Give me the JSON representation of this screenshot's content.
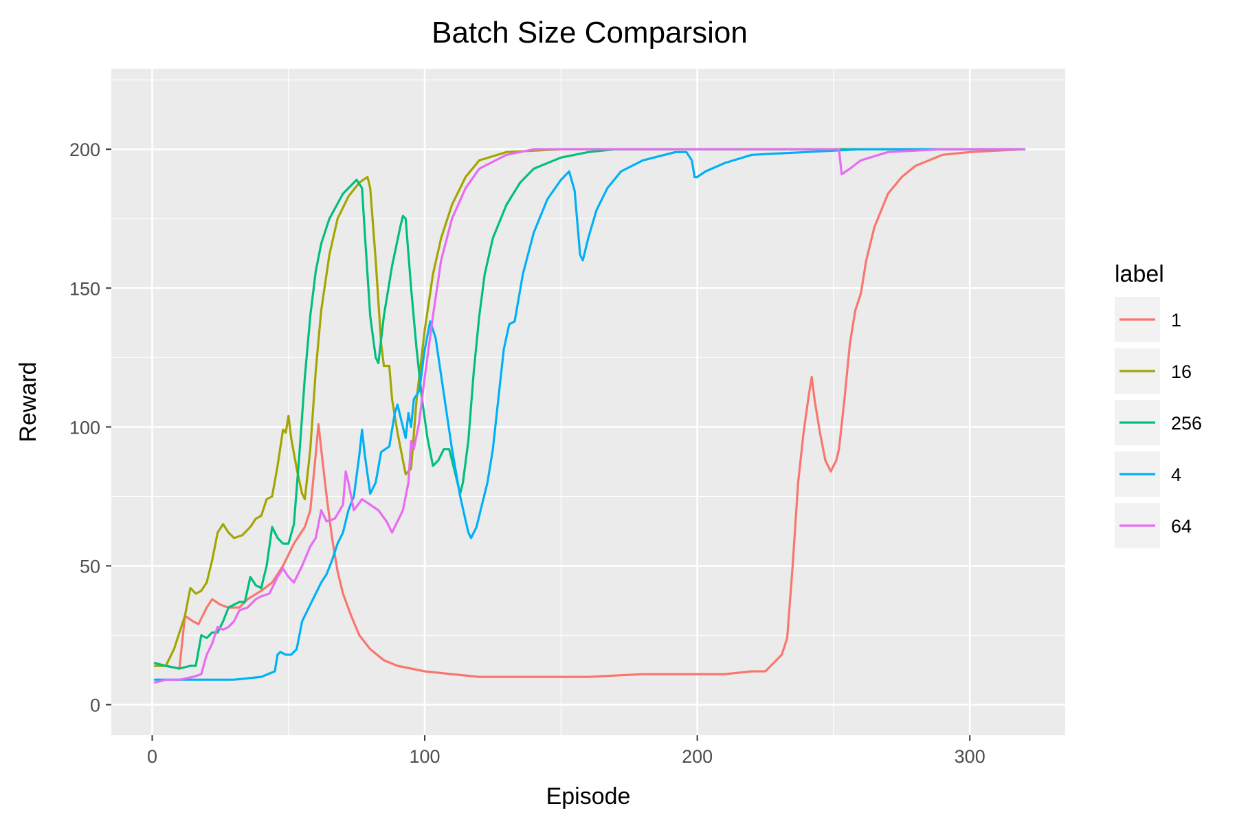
{
  "chart_data": {
    "type": "line",
    "title": "Batch Size Comparsion",
    "xlabel": "Episode",
    "ylabel": "Reward",
    "xlim": [
      -15,
      335
    ],
    "ylim": [
      -11,
      229
    ],
    "x_ticks": [
      0,
      100,
      200,
      300
    ],
    "y_ticks": [
      0,
      50,
      100,
      150,
      200
    ],
    "grid": true,
    "legend": {
      "title": "label",
      "position": "right"
    },
    "series": [
      {
        "name": "1",
        "color": "#F8766D",
        "points": [
          [
            1,
            14
          ],
          [
            5,
            14
          ],
          [
            10,
            13
          ],
          [
            12,
            32
          ],
          [
            15,
            30
          ],
          [
            17,
            29
          ],
          [
            20,
            35
          ],
          [
            22,
            38
          ],
          [
            25,
            36
          ],
          [
            28,
            35
          ],
          [
            32,
            35
          ],
          [
            35,
            38
          ],
          [
            40,
            41
          ],
          [
            44,
            44
          ],
          [
            48,
            50
          ],
          [
            52,
            58
          ],
          [
            56,
            64
          ],
          [
            58,
            70
          ],
          [
            60,
            90
          ],
          [
            61,
            101
          ],
          [
            62,
            92
          ],
          [
            64,
            75
          ],
          [
            66,
            60
          ],
          [
            68,
            48
          ],
          [
            70,
            40
          ],
          [
            73,
            32
          ],
          [
            76,
            25
          ],
          [
            80,
            20
          ],
          [
            85,
            16
          ],
          [
            90,
            14
          ],
          [
            95,
            13
          ],
          [
            100,
            12
          ],
          [
            110,
            11
          ],
          [
            120,
            10
          ],
          [
            130,
            10
          ],
          [
            140,
            10
          ],
          [
            150,
            10
          ],
          [
            160,
            10
          ],
          [
            180,
            11
          ],
          [
            190,
            11
          ],
          [
            200,
            11
          ],
          [
            210,
            11
          ],
          [
            220,
            12
          ],
          [
            225,
            12
          ],
          [
            228,
            15
          ],
          [
            231,
            18
          ],
          [
            233,
            24
          ],
          [
            235,
            50
          ],
          [
            237,
            80
          ],
          [
            239,
            98
          ],
          [
            241,
            112
          ],
          [
            242,
            118
          ],
          [
            243,
            110
          ],
          [
            245,
            98
          ],
          [
            247,
            88
          ],
          [
            249,
            84
          ],
          [
            251,
            88
          ],
          [
            252,
            92
          ],
          [
            254,
            110
          ],
          [
            256,
            130
          ],
          [
            258,
            142
          ],
          [
            260,
            148
          ],
          [
            262,
            160
          ],
          [
            265,
            172
          ],
          [
            270,
            184
          ],
          [
            275,
            190
          ],
          [
            280,
            194
          ],
          [
            290,
            198
          ],
          [
            300,
            199
          ],
          [
            320,
            200
          ]
        ]
      },
      {
        "name": "16",
        "color": "#A3A500",
        "points": [
          [
            1,
            14
          ],
          [
            5,
            14
          ],
          [
            8,
            20
          ],
          [
            12,
            32
          ],
          [
            14,
            42
          ],
          [
            16,
            40
          ],
          [
            18,
            41
          ],
          [
            20,
            44
          ],
          [
            22,
            52
          ],
          [
            24,
            62
          ],
          [
            26,
            65
          ],
          [
            28,
            62
          ],
          [
            30,
            60
          ],
          [
            33,
            61
          ],
          [
            36,
            64
          ],
          [
            38,
            67
          ],
          [
            40,
            68
          ],
          [
            42,
            74
          ],
          [
            44,
            75
          ],
          [
            46,
            86
          ],
          [
            48,
            99
          ],
          [
            49,
            98
          ],
          [
            50,
            104
          ],
          [
            51,
            96
          ],
          [
            53,
            85
          ],
          [
            55,
            76
          ],
          [
            56,
            74
          ],
          [
            58,
            92
          ],
          [
            60,
            120
          ],
          [
            62,
            142
          ],
          [
            65,
            162
          ],
          [
            68,
            175
          ],
          [
            72,
            183
          ],
          [
            76,
            188
          ],
          [
            79,
            190
          ],
          [
            80,
            186
          ],
          [
            82,
            160
          ],
          [
            84,
            130
          ],
          [
            85,
            122
          ],
          [
            87,
            122
          ],
          [
            88,
            110
          ],
          [
            90,
            98
          ],
          [
            92,
            88
          ],
          [
            93,
            83
          ],
          [
            95,
            85
          ],
          [
            97,
            110
          ],
          [
            100,
            135
          ],
          [
            103,
            155
          ],
          [
            106,
            168
          ],
          [
            110,
            180
          ],
          [
            115,
            190
          ],
          [
            120,
            196
          ],
          [
            130,
            199
          ],
          [
            150,
            200
          ],
          [
            320,
            200
          ]
        ]
      },
      {
        "name": "256",
        "color": "#00BF7D",
        "points": [
          [
            1,
            15
          ],
          [
            5,
            14
          ],
          [
            10,
            13
          ],
          [
            14,
            14
          ],
          [
            16,
            14
          ],
          [
            18,
            25
          ],
          [
            20,
            24
          ],
          [
            22,
            26
          ],
          [
            24,
            26
          ],
          [
            26,
            30
          ],
          [
            28,
            35
          ],
          [
            32,
            37
          ],
          [
            34,
            37
          ],
          [
            36,
            46
          ],
          [
            38,
            43
          ],
          [
            40,
            42
          ],
          [
            42,
            50
          ],
          [
            44,
            64
          ],
          [
            46,
            60
          ],
          [
            48,
            58
          ],
          [
            50,
            58
          ],
          [
            52,
            65
          ],
          [
            54,
            90
          ],
          [
            56,
            118
          ],
          [
            58,
            140
          ],
          [
            60,
            156
          ],
          [
            62,
            166
          ],
          [
            65,
            175
          ],
          [
            70,
            184
          ],
          [
            75,
            189
          ],
          [
            77,
            186
          ],
          [
            78,
            170
          ],
          [
            80,
            140
          ],
          [
            82,
            125
          ],
          [
            83,
            123
          ],
          [
            85,
            140
          ],
          [
            88,
            158
          ],
          [
            91,
            172
          ],
          [
            92,
            176
          ],
          [
            93,
            175
          ],
          [
            95,
            150
          ],
          [
            97,
            128
          ],
          [
            99,
            110
          ],
          [
            101,
            96
          ],
          [
            103,
            86
          ],
          [
            105,
            88
          ],
          [
            107,
            92
          ],
          [
            109,
            92
          ],
          [
            111,
            84
          ],
          [
            113,
            76
          ],
          [
            114,
            80
          ],
          [
            116,
            95
          ],
          [
            118,
            120
          ],
          [
            120,
            140
          ],
          [
            122,
            155
          ],
          [
            125,
            168
          ],
          [
            130,
            180
          ],
          [
            135,
            188
          ],
          [
            140,
            193
          ],
          [
            150,
            197
          ],
          [
            160,
            199
          ],
          [
            170,
            200
          ],
          [
            320,
            200
          ]
        ]
      },
      {
        "name": "4",
        "color": "#00B0F6",
        "points": [
          [
            1,
            9
          ],
          [
            10,
            9
          ],
          [
            20,
            9
          ],
          [
            30,
            9
          ],
          [
            40,
            10
          ],
          [
            45,
            12
          ],
          [
            46,
            18
          ],
          [
            47,
            19
          ],
          [
            49,
            18
          ],
          [
            51,
            18
          ],
          [
            53,
            20
          ],
          [
            55,
            30
          ],
          [
            57,
            34
          ],
          [
            60,
            40
          ],
          [
            62,
            44
          ],
          [
            64,
            47
          ],
          [
            66,
            52
          ],
          [
            68,
            58
          ],
          [
            70,
            62
          ],
          [
            72,
            70
          ],
          [
            74,
            75
          ],
          [
            76,
            90
          ],
          [
            77,
            99
          ],
          [
            78,
            90
          ],
          [
            80,
            76
          ],
          [
            82,
            80
          ],
          [
            84,
            91
          ],
          [
            87,
            93
          ],
          [
            89,
            105
          ],
          [
            90,
            108
          ],
          [
            92,
            100
          ],
          [
            93,
            96
          ],
          [
            94,
            105
          ],
          [
            95,
            100
          ],
          [
            96,
            110
          ],
          [
            98,
            113
          ],
          [
            100,
            128
          ],
          [
            102,
            138
          ],
          [
            104,
            132
          ],
          [
            107,
            112
          ],
          [
            110,
            92
          ],
          [
            113,
            75
          ],
          [
            116,
            62
          ],
          [
            117,
            60
          ],
          [
            119,
            64
          ],
          [
            121,
            72
          ],
          [
            123,
            80
          ],
          [
            125,
            92
          ],
          [
            127,
            110
          ],
          [
            129,
            128
          ],
          [
            131,
            137
          ],
          [
            133,
            138
          ],
          [
            136,
            155
          ],
          [
            140,
            170
          ],
          [
            145,
            182
          ],
          [
            150,
            189
          ],
          [
            153,
            192
          ],
          [
            155,
            185
          ],
          [
            157,
            162
          ],
          [
            158,
            160
          ],
          [
            160,
            168
          ],
          [
            163,
            178
          ],
          [
            167,
            186
          ],
          [
            172,
            192
          ],
          [
            180,
            196
          ],
          [
            192,
            199
          ],
          [
            196,
            199
          ],
          [
            198,
            196
          ],
          [
            199,
            190
          ],
          [
            200,
            190
          ],
          [
            203,
            192
          ],
          [
            210,
            195
          ],
          [
            220,
            198
          ],
          [
            240,
            199
          ],
          [
            260,
            200
          ],
          [
            320,
            200
          ]
        ]
      },
      {
        "name": "64",
        "color": "#E76BF3",
        "points": [
          [
            1,
            8
          ],
          [
            5,
            9
          ],
          [
            10,
            9
          ],
          [
            15,
            10
          ],
          [
            18,
            11
          ],
          [
            20,
            18
          ],
          [
            22,
            22
          ],
          [
            24,
            28
          ],
          [
            26,
            27
          ],
          [
            28,
            28
          ],
          [
            30,
            30
          ],
          [
            32,
            34
          ],
          [
            35,
            35
          ],
          [
            38,
            38
          ],
          [
            40,
            39
          ],
          [
            43,
            40
          ],
          [
            46,
            46
          ],
          [
            48,
            49
          ],
          [
            50,
            46
          ],
          [
            52,
            44
          ],
          [
            55,
            50
          ],
          [
            58,
            57
          ],
          [
            60,
            60
          ],
          [
            62,
            70
          ],
          [
            64,
            66
          ],
          [
            67,
            67
          ],
          [
            70,
            72
          ],
          [
            71,
            84
          ],
          [
            72,
            80
          ],
          [
            74,
            70
          ],
          [
            77,
            74
          ],
          [
            80,
            72
          ],
          [
            83,
            70
          ],
          [
            86,
            66
          ],
          [
            88,
            62
          ],
          [
            90,
            66
          ],
          [
            92,
            70
          ],
          [
            94,
            80
          ],
          [
            95,
            95
          ],
          [
            96,
            92
          ],
          [
            98,
            102
          ],
          [
            100,
            118
          ],
          [
            103,
            140
          ],
          [
            106,
            160
          ],
          [
            110,
            175
          ],
          [
            115,
            186
          ],
          [
            120,
            193
          ],
          [
            130,
            198
          ],
          [
            140,
            200
          ],
          [
            250,
            200
          ],
          [
            252,
            200
          ],
          [
            253,
            191
          ],
          [
            256,
            193
          ],
          [
            260,
            196
          ],
          [
            270,
            199
          ],
          [
            290,
            200
          ],
          [
            320,
            200
          ]
        ]
      }
    ]
  }
}
